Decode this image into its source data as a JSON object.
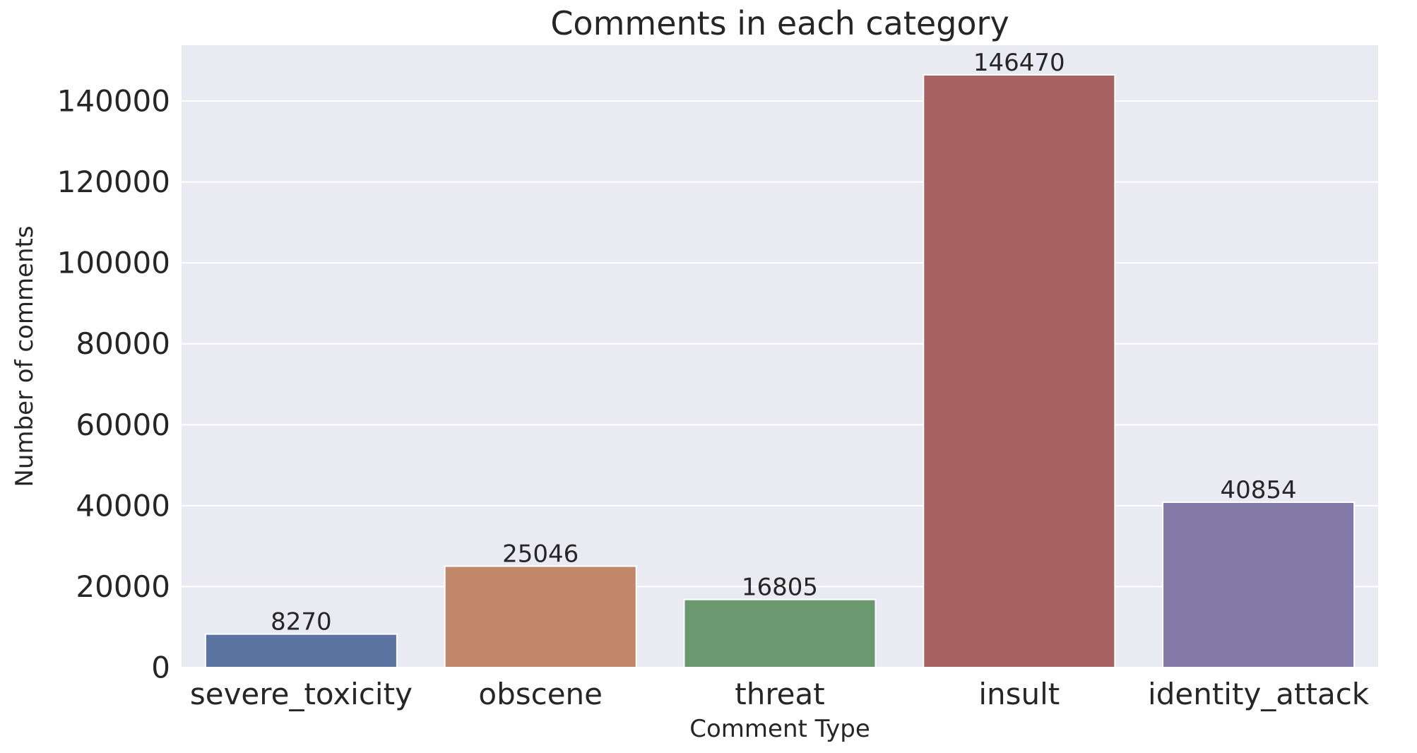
{
  "chart_data": {
    "type": "bar",
    "title": "Comments in each category",
    "xlabel": "Comment Type",
    "ylabel": "Number of comments",
    "categories": [
      "severe_toxicity",
      "obscene",
      "threat",
      "insult",
      "identity_attack"
    ],
    "values": [
      8270,
      25046,
      16805,
      146470,
      40854
    ],
    "data_labels": [
      "8270",
      "25046",
      "16805",
      "146470",
      "40854"
    ],
    "colors": [
      "#5c74a0",
      "#c2876a",
      "#6c9870",
      "#a86262",
      "#8279a7"
    ],
    "yticks": [
      0,
      20000,
      40000,
      60000,
      80000,
      100000,
      120000,
      140000
    ],
    "ytick_labels": [
      "0",
      "20000",
      "40000",
      "60000",
      "80000",
      "100000",
      "120000",
      "140000"
    ],
    "ylim": [
      0,
      153800
    ],
    "grid": true,
    "background": "#eaeaf2",
    "grid_color": "#ffffff",
    "text_color": "#262626"
  }
}
